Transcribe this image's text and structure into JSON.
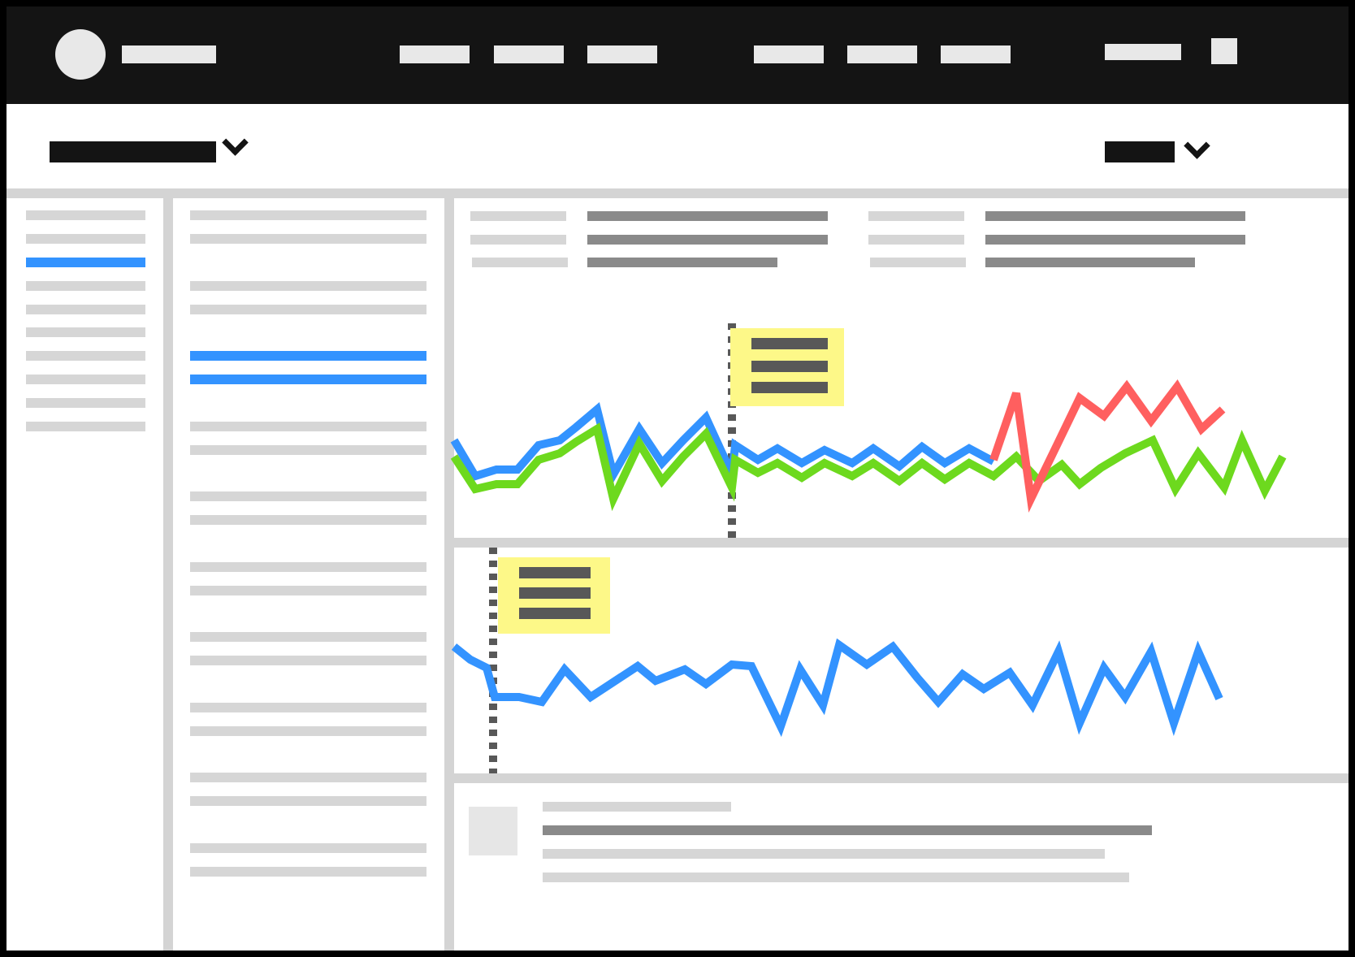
{
  "app": {
    "topbar": {
      "logo": "logo-circle-icon",
      "title": "",
      "nav_left": [
        "",
        "",
        ""
      ],
      "nav_right": [
        "",
        "",
        ""
      ],
      "account_label": "",
      "menu_icon": "square-icon"
    },
    "subheader": {
      "project_label": "",
      "range_label": ""
    }
  },
  "colors": {
    "topbar_bg": "#141414",
    "accent_blue": "#3393ff",
    "series_green": "#6dd91e",
    "series_red": "#ff5f5f",
    "note_bg": "#fdf888",
    "divider": "#d4d4d4"
  },
  "chart_data": [
    {
      "type": "line",
      "series": [
        {
          "color": "#3393ff",
          "values": [
            72,
            28,
            36,
            36,
            66,
            72,
            88,
            110,
            30,
            86,
            44,
            72,
            100,
            30,
            66,
            48,
            62,
            44,
            60,
            44,
            62,
            40,
            64,
            44,
            62,
            46
          ]
        },
        {
          "color": "#6dd91e",
          "values": [
            52,
            12,
            18,
            18,
            48,
            56,
            70,
            86,
            0,
            68,
            22,
            52,
            80,
            14,
            48,
            32,
            44,
            26,
            44,
            28,
            44,
            22,
            44,
            24,
            44,
            28,
            52,
            22,
            42,
            18,
            38,
            56,
            72,
            12,
            56,
            14,
            72,
            10,
            52
          ]
        },
        {
          "color": "#ff5f5f",
          "values": [
            48,
            130,
            0,
            66,
            124,
            102,
            138,
            96,
            138,
            86,
            110
          ]
        }
      ],
      "annotation": {
        "type": "vertical-dashed-marker",
        "note": ""
      }
    },
    {
      "type": "line",
      "series": [
        {
          "color": "#3393ff",
          "values": [
            62,
            46,
            36,
            0,
            0,
            -6,
            34,
            0,
            38,
            20,
            34,
            16,
            40,
            38,
            -36,
            34,
            -10,
            64,
            40,
            62,
            24,
            -6,
            28,
            10,
            30,
            -10,
            56,
            -32,
            36,
            0,
            56,
            -32,
            56,
            -2
          ]
        }
      ],
      "annotation": {
        "type": "vertical-dashed-marker",
        "note": ""
      }
    }
  ],
  "sidebar": {
    "selected_index": 2,
    "item_count": 10
  },
  "list_panel": {
    "selected_rows": [
      4,
      5
    ]
  }
}
